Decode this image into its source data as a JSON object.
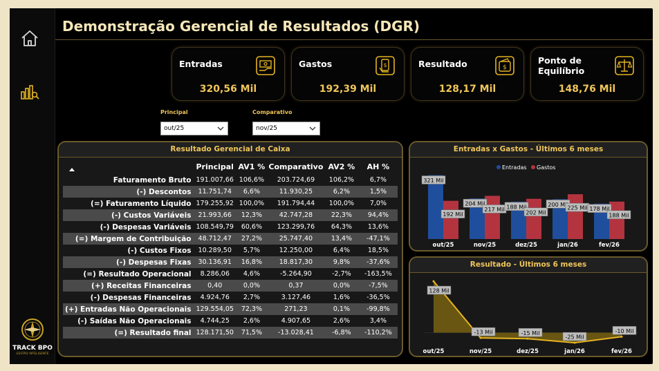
{
  "title": "Demonstração Gerencial de Resultados (DGR)",
  "sidebar": {
    "logo_name": "TRACK BPO",
    "logo_tag": "GESTÃO INTELIGENTE"
  },
  "kpis": [
    {
      "label": "Entradas",
      "value": "320,56 Mil",
      "icon": "money-icon"
    },
    {
      "label": "Gastos",
      "value": "192,39 Mil",
      "icon": "phone-pay-icon"
    },
    {
      "label": "Resultado",
      "value": "128,17 Mil",
      "icon": "wallet-icon"
    },
    {
      "label": "Ponto de Equilíbrio",
      "value": "148,76 Mil",
      "icon": "scale-icon"
    }
  ],
  "filters": {
    "principal": {
      "label": "Principal",
      "value": "out/25"
    },
    "comparativo": {
      "label": "Comparativo",
      "value": "nov/25"
    }
  },
  "table": {
    "title": "Resultado Gerencial de Caixa",
    "columns": [
      "Principal",
      "AV1 %",
      "Comparativo",
      "AV2 %",
      "AH %"
    ],
    "rows": [
      {
        "label": "Faturamento Bruto",
        "v": [
          "191.007,66",
          "106,6%",
          "203.724,69",
          "106,2%",
          "6,7%"
        ]
      },
      {
        "label": "(-) Descontos",
        "v": [
          "11.751,74",
          "6,6%",
          "11.930,25",
          "6,2%",
          "1,5%"
        ]
      },
      {
        "label": "(=) Faturamento Líquido",
        "v": [
          "179.255,92",
          "100,0%",
          "191.794,44",
          "100,0%",
          "7,0%"
        ]
      },
      {
        "label": "(-) Custos Variáveis",
        "v": [
          "21.993,66",
          "12,3%",
          "42.747,28",
          "22,3%",
          "94,4%"
        ]
      },
      {
        "label": "(-) Despesas Variáveis",
        "v": [
          "108.549,79",
          "60,6%",
          "123.299,76",
          "64,3%",
          "13,6%"
        ]
      },
      {
        "label": "(=) Margem de Contribuição",
        "v": [
          "48.712,47",
          "27,2%",
          "25.747,40",
          "13,4%",
          "-47,1%"
        ]
      },
      {
        "label": "(-) Custos Fixos",
        "v": [
          "10.289,50",
          "5,7%",
          "12.250,00",
          "6,4%",
          "18,5%"
        ]
      },
      {
        "label": "(-) Despesas Fixas",
        "v": [
          "30.136,91",
          "16,8%",
          "18.817,30",
          "9,8%",
          "-37,6%"
        ]
      },
      {
        "label": "(=) Resultado Operacional",
        "v": [
          "8.286,06",
          "4,6%",
          "-5.264,90",
          "-2,7%",
          "-163,5%"
        ]
      },
      {
        "label": "(+) Receitas Financeiras",
        "v": [
          "0,40",
          "0,0%",
          "0,37",
          "0,0%",
          "-7,5%"
        ]
      },
      {
        "label": "(-) Despesas Financeiras",
        "v": [
          "4.924,76",
          "2,7%",
          "3.127,46",
          "1,6%",
          "-36,5%"
        ]
      },
      {
        "label": "(+) Entradas Não Operacionais",
        "v": [
          "129.554,05",
          "72,3%",
          "271,23",
          "0,1%",
          "-99,8%"
        ]
      },
      {
        "label": "(-) Saídas Não Operacionais",
        "v": [
          "4.744,25",
          "2,6%",
          "4.907,65",
          "2,6%",
          "3,4%"
        ]
      },
      {
        "label": "(=) Resultado final",
        "v": [
          "128.171,50",
          "71,5%",
          "-13.028,41",
          "-6,8%",
          "-110,2%"
        ]
      }
    ]
  },
  "chart_data": [
    {
      "type": "bar",
      "title": "Entradas x Gastos - Últimos 6 meses",
      "categories": [
        "out/25",
        "nov/25",
        "dez/25",
        "jan/26",
        "fev/26"
      ],
      "series": [
        {
          "name": "Entradas",
          "values": [
            321,
            204,
            188,
            200,
            178
          ],
          "labels": [
            "321 Mil",
            "204 Mil",
            "188 Mil",
            "200 Mil",
            "178 Mil"
          ],
          "color": "#1f4e9c"
        },
        {
          "name": "Gastos",
          "values": [
            192,
            217,
            202,
            225,
            188
          ],
          "labels": [
            "192 Mil",
            "217 Mil",
            "202 Mil",
            "225 Mil",
            "188 Mil"
          ],
          "color": "#b3343f"
        }
      ],
      "ylim": [
        0,
        340
      ],
      "legend": "top-center"
    },
    {
      "type": "area",
      "title": "Resultado - Últimos 6 meses",
      "categories": [
        "out/25",
        "nov/25",
        "dez/25",
        "jan/26",
        "fev/26"
      ],
      "values": [
        128,
        -13,
        -15,
        -25,
        -10
      ],
      "labels": [
        "128 Mil",
        "-13 Mil",
        "-15 Mil",
        "-25 Mil",
        "-10 Mil"
      ],
      "color": "#e6b422",
      "fill": "#6d5a12",
      "ylim": [
        -30,
        135
      ]
    }
  ]
}
